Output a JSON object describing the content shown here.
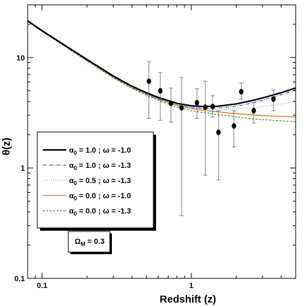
{
  "chart_data": {
    "type": "scatter",
    "title": "",
    "xlabel": "Redshift (z)",
    "ylabel": "θ(z)",
    "xscale": "log",
    "yscale": "log",
    "xlim": [
      0.08,
      5.0
    ],
    "ylim": [
      0.1,
      30
    ],
    "x_tick_labels": [
      {
        "value": 0.1,
        "label": "0.1"
      },
      {
        "value": 1,
        "label": "1"
      }
    ],
    "y_tick_labels": [
      {
        "value": 0.1,
        "label": "0.1"
      },
      {
        "value": 1,
        "label": "1"
      },
      {
        "value": 10,
        "label": "10"
      }
    ],
    "grid": false,
    "legend_position": "lower-left",
    "series": [
      {
        "name": "α0 = 1.0 ; ω = -1.0",
        "kind": "line",
        "style": "solid-thick",
        "color": "#000000",
        "x": [
          0.08,
          0.1,
          0.15,
          0.2,
          0.3,
          0.4,
          0.5,
          0.6,
          0.8,
          1.0,
          1.2,
          1.5,
          2.0,
          2.5,
          3.0,
          4.0,
          5.0
        ],
        "y": [
          21.5,
          17.5,
          12.3,
          9.6,
          6.8,
          5.5,
          4.8,
          4.35,
          3.85,
          3.65,
          3.6,
          3.62,
          3.8,
          4.05,
          4.3,
          4.8,
          5.3
        ]
      },
      {
        "name": "α0 = 1.0 ; ω = -1.3",
        "kind": "line",
        "style": "dash-dot",
        "color": "#1f2fd0",
        "x": [
          0.08,
          0.1,
          0.15,
          0.2,
          0.3,
          0.4,
          0.5,
          0.6,
          0.8,
          1.0,
          1.2,
          1.5,
          2.0,
          2.5,
          3.0,
          4.0,
          5.0
        ],
        "y": [
          21.3,
          17.3,
          12.1,
          9.4,
          6.65,
          5.35,
          4.65,
          4.2,
          3.72,
          3.52,
          3.47,
          3.48,
          3.62,
          3.85,
          4.1,
          4.6,
          5.1
        ]
      },
      {
        "name": "α0 = 0.5 ; ω = -1.3",
        "kind": "line",
        "style": "dotted",
        "color": "#44bb44",
        "x": [
          0.08,
          0.1,
          0.15,
          0.2,
          0.3,
          0.4,
          0.5,
          0.6,
          0.8,
          1.0,
          1.2,
          1.5,
          2.0,
          2.5,
          3.0,
          4.0,
          5.0
        ],
        "y": [
          21.3,
          17.3,
          12.1,
          9.35,
          6.6,
          5.3,
          4.6,
          4.15,
          3.65,
          3.45,
          3.38,
          3.36,
          3.42,
          3.5,
          3.6,
          3.8,
          4.0
        ]
      },
      {
        "name": "α0 = 0.0 ; ω = -1.0",
        "kind": "line",
        "style": "solid",
        "color": "#e07820",
        "x": [
          0.08,
          0.1,
          0.15,
          0.2,
          0.3,
          0.4,
          0.5,
          0.6,
          0.8,
          1.0,
          1.2,
          1.5,
          2.0,
          2.5,
          3.0,
          4.0,
          5.0
        ],
        "y": [
          21.4,
          17.4,
          12.2,
          9.5,
          6.7,
          5.4,
          4.7,
          4.25,
          3.7,
          3.45,
          3.33,
          3.22,
          3.1,
          3.03,
          2.98,
          2.93,
          2.9
        ]
      },
      {
        "name": "α0 = 0.0 ; ω = -1.3",
        "kind": "line",
        "style": "dashed",
        "color": "#1a7a1a",
        "x": [
          0.08,
          0.1,
          0.15,
          0.2,
          0.3,
          0.4,
          0.5,
          0.6,
          0.8,
          1.0,
          1.2,
          1.5,
          2.0,
          2.5,
          3.0,
          4.0,
          5.0
        ],
        "y": [
          21.2,
          17.2,
          12.0,
          9.3,
          6.55,
          5.25,
          4.55,
          4.1,
          3.55,
          3.3,
          3.18,
          3.05,
          2.9,
          2.8,
          2.74,
          2.67,
          2.62
        ]
      },
      {
        "name": "data",
        "kind": "scatter",
        "color": "#000000",
        "points": [
          {
            "x": 0.52,
            "y": 6.1,
            "ylo": 2.8,
            "yhi": 9.2
          },
          {
            "x": 0.62,
            "y": 5.0,
            "ylo": 2.7,
            "yhi": 7.3
          },
          {
            "x": 0.73,
            "y": 3.85,
            "ylo": 2.6,
            "yhi": 5.3
          },
          {
            "x": 0.86,
            "y": 3.5,
            "ylo": 0.37,
            "yhi": 6.6
          },
          {
            "x": 1.09,
            "y": 3.9,
            "ylo": 2.8,
            "yhi": 5.2
          },
          {
            "x": 1.24,
            "y": 3.55,
            "ylo": 0.86,
            "yhi": 6.1
          },
          {
            "x": 1.39,
            "y": 3.6,
            "ylo": 2.9,
            "yhi": 4.5
          },
          {
            "x": 1.52,
            "y": 2.1,
            "ylo": 0.78,
            "yhi": 3.3
          },
          {
            "x": 1.93,
            "y": 2.4,
            "ylo": 1.55,
            "yhi": 3.3
          },
          {
            "x": 2.16,
            "y": 4.9,
            "ylo": 4.2,
            "yhi": 5.9
          },
          {
            "x": 2.62,
            "y": 3.3,
            "ylo": 2.55,
            "yhi": 3.9
          },
          {
            "x": 3.55,
            "y": 4.2,
            "ylo": 3.3,
            "yhi": 5.1
          }
        ]
      }
    ],
    "legend": [
      {
        "sym": "α",
        "sub": "0",
        "text": " = 1.0 ; ω = -1.0"
      },
      {
        "sym": "α",
        "sub": "0",
        "text": " = 1.0 ; ω = -1.3"
      },
      {
        "sym": "α",
        "sub": "0",
        "text": " = 0.5 ; ω = -1.3"
      },
      {
        "sym": "α",
        "sub": "0",
        "text": " = 0.0 ; ω = -1.0"
      },
      {
        "sym": "α",
        "sub": "0",
        "text": " = 0.0 ; ω = -1.3"
      }
    ],
    "annotation": {
      "sym": "Ω",
      "sub": "M",
      "text": " = 0.3"
    }
  }
}
